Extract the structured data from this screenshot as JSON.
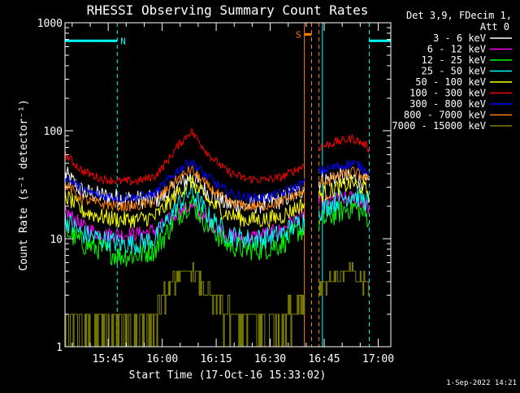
{
  "chart_data": {
    "type": "line",
    "title": "RHESSI Observing Summary Count Rates",
    "xlabel": "Start Time (17-Oct-16 15:33:02)",
    "ylabel": "Count Rate (s⁻¹ detector⁻¹)",
    "y_scale": "log",
    "ylim": [
      1,
      1000
    ],
    "y_ticks": [
      1,
      10,
      100,
      1000
    ],
    "y_tick_labels": [
      "1",
      "10",
      "100",
      "1000"
    ],
    "x_unit": "minutes after 15:33:02",
    "xlim": [
      0,
      90.5
    ],
    "x_ticks": [
      {
        "label": "15:45",
        "t": 12
      },
      {
        "label": "16:00",
        "t": 27
      },
      {
        "label": "16:15",
        "t": 42
      },
      {
        "label": "16:30",
        "t": 57
      },
      {
        "label": "16:45",
        "t": 72
      },
      {
        "label": "17:00",
        "t": 87
      }
    ],
    "legend_header": [
      "Det 3,9, FDecim 1,",
      "Att 0"
    ],
    "legend_position": "right",
    "footer_date": "1-Sep-2022 14:21",
    "gaps": [
      [
        66.5,
        70.5
      ]
    ],
    "flag_markers": [
      {
        "label": "N",
        "color": "#00ffff",
        "bar": [
          0,
          14.5
        ],
        "level": 680,
        "lines": [
          0,
          14.5,
          71.5,
          84.5
        ]
      },
      {
        "label": "S",
        "color": "#ff8000",
        "bar": [
          66.5,
          68.5
        ],
        "level": 780,
        "lines": [
          66.5,
          68.5,
          70.5
        ]
      }
    ],
    "bands": [
      {
        "label": "3 - 6 keV",
        "color": "#ffffff",
        "t": [
          0,
          5,
          10,
          15,
          20,
          25,
          28,
          31,
          35,
          40,
          45,
          50,
          55,
          60,
          65,
          66.5,
          70.5,
          75,
          80,
          84,
          84.5
        ],
        "values": [
          40,
          27,
          25,
          24,
          23,
          23,
          25,
          30,
          38,
          26,
          21,
          20,
          21,
          23,
          27,
          30,
          34,
          37,
          36,
          33,
          31
        ]
      },
      {
        "label": "6 - 12 keV",
        "color": "#ff00ff",
        "t": [
          0,
          5,
          10,
          15,
          20,
          25,
          28,
          31,
          35,
          40,
          45,
          50,
          55,
          60,
          65,
          66.5,
          70.5,
          75,
          80,
          84,
          84.5
        ],
        "values": [
          18,
          13,
          11,
          11,
          11,
          12,
          14,
          17,
          20,
          14,
          11,
          10,
          11,
          12,
          16,
          17,
          21,
          23,
          24,
          20,
          19
        ]
      },
      {
        "label": "12 - 25 keV",
        "color": "#00ff00",
        "t": [
          0,
          5,
          10,
          15,
          20,
          25,
          28,
          31,
          35,
          40,
          45,
          50,
          55,
          60,
          65,
          66.5,
          70.5,
          75,
          80,
          84,
          84.5
        ],
        "values": [
          12,
          9,
          8,
          7,
          7,
          8,
          11,
          16,
          22,
          13,
          9,
          8,
          8,
          9,
          12,
          12,
          14,
          17,
          20,
          16,
          15
        ]
      },
      {
        "label": "25 - 50 keV",
        "color": "#00ffff",
        "t": [
          0,
          5,
          10,
          15,
          20,
          25,
          28,
          31,
          35,
          40,
          45,
          50,
          55,
          60,
          65,
          66.5,
          70.5,
          75,
          80,
          84,
          84.5
        ],
        "values": [
          15,
          11,
          10,
          9,
          9,
          10,
          14,
          20,
          28,
          16,
          11,
          10,
          10,
          11,
          14,
          15,
          18,
          22,
          26,
          22,
          20
        ]
      },
      {
        "label": "50 - 100 keV",
        "color": "#ffff00",
        "t": [
          0,
          5,
          10,
          15,
          20,
          25,
          28,
          31,
          35,
          40,
          45,
          50,
          55,
          60,
          65,
          66.5,
          70.5,
          75,
          80,
          84,
          84.5
        ],
        "values": [
          25,
          18,
          16,
          15,
          15,
          16,
          20,
          26,
          34,
          22,
          17,
          15,
          15,
          16,
          20,
          21,
          25,
          29,
          33,
          28,
          26
        ]
      },
      {
        "label": "100 - 300 keV",
        "color": "#ff0000",
        "t": [
          0,
          5,
          10,
          15,
          20,
          25,
          28,
          31,
          35,
          40,
          45,
          50,
          55,
          60,
          65,
          66.5,
          70.5,
          75,
          80,
          84,
          84.5
        ],
        "values": [
          60,
          42,
          36,
          34,
          34,
          38,
          50,
          70,
          100,
          60,
          42,
          36,
          35,
          37,
          45,
          48,
          70,
          78,
          85,
          72,
          65
        ]
      },
      {
        "label": "300 - 800 keV",
        "color": "#0000ff",
        "t": [
          0,
          5,
          10,
          15,
          20,
          25,
          28,
          31,
          35,
          40,
          45,
          50,
          55,
          60,
          65,
          66.5,
          70.5,
          75,
          80,
          84,
          84.5
        ],
        "values": [
          38,
          28,
          25,
          24,
          24,
          26,
          33,
          42,
          52,
          36,
          27,
          24,
          24,
          26,
          31,
          33,
          42,
          46,
          50,
          43,
          40
        ]
      },
      {
        "label": "800 - 7000 keV",
        "color": "#ff8000",
        "t": [
          0,
          5,
          10,
          15,
          20,
          25,
          28,
          31,
          35,
          40,
          45,
          50,
          55,
          60,
          65,
          66.5,
          70.5,
          75,
          80,
          84,
          84.5
        ],
        "values": [
          32,
          23,
          21,
          20,
          20,
          22,
          28,
          35,
          44,
          30,
          22,
          20,
          20,
          22,
          26,
          28,
          33,
          37,
          42,
          36,
          33
        ]
      },
      {
        "label": "7000 - 15000 keV",
        "color": "#808000",
        "t": [
          0,
          5,
          10,
          15,
          20,
          25,
          28,
          31,
          35,
          40,
          45,
          50,
          55,
          60,
          65,
          66.5,
          70.5,
          75,
          80,
          84,
          84.5
        ],
        "values": [
          2,
          1.5,
          1.3,
          1.3,
          1.5,
          1.8,
          3,
          4.5,
          5,
          3,
          2,
          1.6,
          1.5,
          1.6,
          2.5,
          2.6,
          3.8,
          4.5,
          5,
          3.5,
          3
        ]
      }
    ]
  }
}
